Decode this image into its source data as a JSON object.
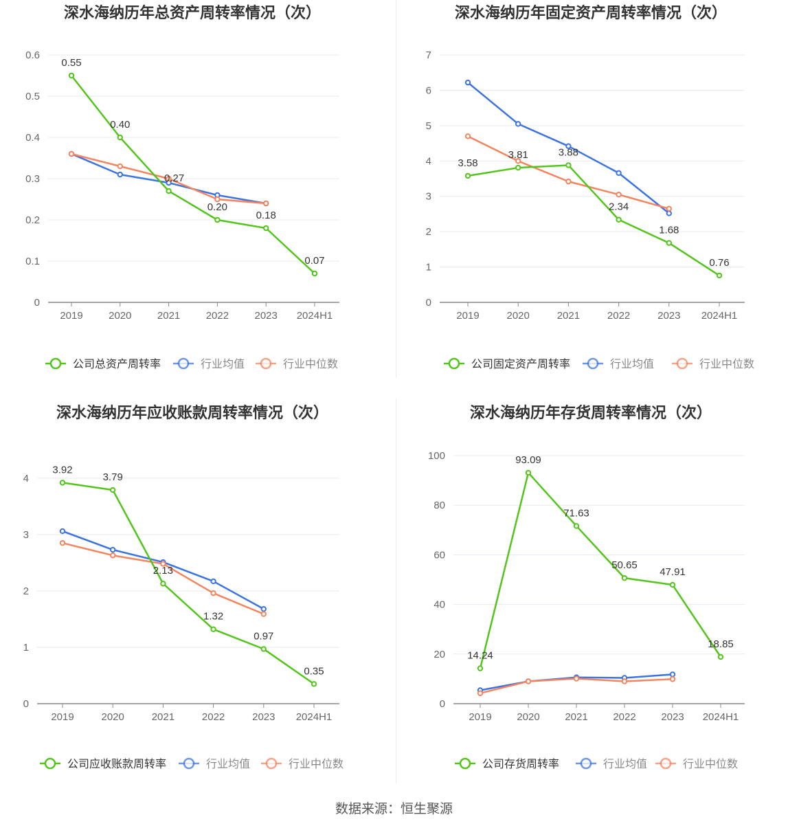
{
  "source_text": "数据来源：恒生聚源",
  "colors": {
    "company": "#52c41a",
    "avg": "#3b73e0",
    "median": "#f4845f",
    "grid": "#e6e9f0",
    "axis": "#666666"
  },
  "chart_data": [
    {
      "type": "line",
      "title": "深水海纳历年总资产周转率情况（次）",
      "categories": [
        "2019",
        "2020",
        "2021",
        "2022",
        "2023",
        "2024H1"
      ],
      "ylim": [
        0,
        0.6
      ],
      "yticks": [
        "0",
        "0.1",
        "0.2",
        "0.3",
        "0.4",
        "0.5",
        "0.6"
      ],
      "legend_position": "bottom",
      "grid": true,
      "series": [
        {
          "name": "公司总资产周转率",
          "key": "company",
          "values": [
            0.55,
            0.4,
            0.27,
            0.2,
            0.18,
            0.07
          ],
          "labels": [
            "0.55",
            "0.40",
            "0.27",
            "0.20",
            "0.18",
            "0.07"
          ]
        },
        {
          "name": "行业均值",
          "key": "avg",
          "values": [
            0.36,
            0.31,
            0.29,
            0.26,
            0.24,
            null
          ]
        },
        {
          "name": "行业中位数",
          "key": "median",
          "values": [
            0.36,
            0.33,
            0.3,
            0.25,
            0.24,
            null
          ]
        }
      ]
    },
    {
      "type": "line",
      "title": "深水海纳历年固定资产周转率情况（次）",
      "categories": [
        "2019",
        "2020",
        "2021",
        "2022",
        "2023",
        "2024H1"
      ],
      "ylim": [
        0,
        7
      ],
      "yticks": [
        "0",
        "1",
        "2",
        "3",
        "4",
        "5",
        "6",
        "7"
      ],
      "legend_position": "bottom",
      "grid": true,
      "series": [
        {
          "name": "公司固定资产周转率",
          "key": "company",
          "values": [
            3.58,
            3.81,
            3.88,
            2.34,
            1.68,
            0.76
          ],
          "labels": [
            "3.58",
            "3.81",
            "3.88",
            "2.34",
            "1.68",
            "0.76"
          ]
        },
        {
          "name": "行业均值",
          "key": "avg",
          "values": [
            6.22,
            5.05,
            4.42,
            3.66,
            2.52,
            null
          ]
        },
        {
          "name": "行业中位数",
          "key": "median",
          "values": [
            4.7,
            4.0,
            3.42,
            3.05,
            2.65,
            null
          ]
        }
      ]
    },
    {
      "type": "line",
      "title": "深水海纳历年应收账款周转率情况（次）",
      "categories": [
        "2019",
        "2020",
        "2021",
        "2022",
        "2023",
        "2024H1"
      ],
      "ylim": [
        0,
        4.4
      ],
      "yticks": [
        "0",
        "1",
        "2",
        "3",
        "4"
      ],
      "legend_position": "bottom",
      "grid": true,
      "series": [
        {
          "name": "公司应收账款周转率",
          "key": "company",
          "values": [
            3.92,
            3.79,
            2.13,
            1.32,
            0.97,
            0.35
          ],
          "labels": [
            "3.92",
            "3.79",
            "2.13",
            "1.32",
            "0.97",
            "0.35"
          ]
        },
        {
          "name": "行业均值",
          "key": "avg",
          "values": [
            3.06,
            2.73,
            2.51,
            2.17,
            1.68,
            null
          ]
        },
        {
          "name": "行业中位数",
          "key": "median",
          "values": [
            2.85,
            2.63,
            2.48,
            1.96,
            1.59,
            null
          ]
        }
      ]
    },
    {
      "type": "line",
      "title": "深水海纳历年存货周转率情况（次）",
      "categories": [
        "2019",
        "2020",
        "2021",
        "2022",
        "2023",
        "2024H1"
      ],
      "ylim": [
        0,
        100
      ],
      "yticks": [
        "0",
        "20",
        "40",
        "60",
        "80",
        "100"
      ],
      "legend_position": "bottom",
      "grid": true,
      "series": [
        {
          "name": "公司存货周转率",
          "key": "company",
          "values": [
            14.24,
            93.09,
            71.63,
            50.65,
            47.91,
            18.85
          ],
          "labels": [
            "14.24",
            "93.09",
            "71.63",
            "50.65",
            "47.91",
            "18.85"
          ]
        },
        {
          "name": "行业均值",
          "key": "avg",
          "values": [
            5.4,
            9.0,
            10.6,
            10.4,
            11.8,
            null
          ]
        },
        {
          "name": "行业中位数",
          "key": "median",
          "values": [
            4.2,
            9.0,
            10.1,
            9.0,
            9.9,
            null
          ]
        }
      ]
    }
  ]
}
